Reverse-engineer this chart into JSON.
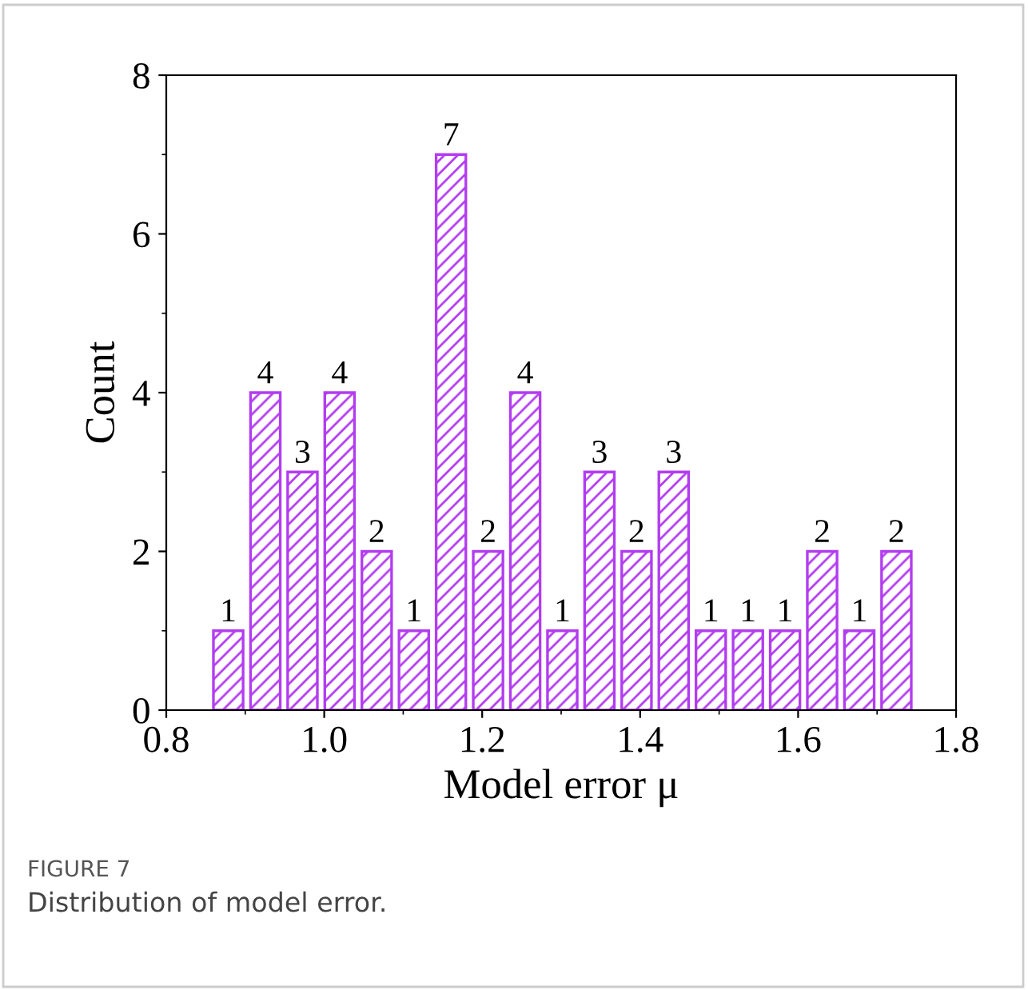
{
  "chart_data": {
    "type": "histogram",
    "xlabel": "Model error μ",
    "ylabel": "Count",
    "bins": [
      0.855,
      0.902,
      0.949,
      0.996,
      1.043,
      1.09,
      1.137,
      1.184,
      1.231,
      1.278,
      1.325,
      1.372,
      1.419,
      1.466,
      1.513,
      1.56,
      1.607,
      1.654,
      1.701,
      1.748
    ],
    "values": [
      1,
      4,
      3,
      4,
      2,
      1,
      7,
      2,
      4,
      1,
      3,
      2,
      3,
      1,
      1,
      1,
      2,
      1,
      2
    ],
    "color": "#b23cf0",
    "data_labels": true,
    "grid": false,
    "xlim": [
      0.8,
      1.8
    ],
    "xticks": [
      0.8,
      {
        "value": 1,
        "label": "1.0"
      },
      1.2,
      1.4,
      1.6,
      1.8
    ],
    "ylim": [
      0,
      8
    ],
    "yticks": [
      0,
      2,
      4,
      6,
      8
    ],
    "annotations": [
      "FIGURE 7",
      "Distribution of model error."
    ]
  }
}
